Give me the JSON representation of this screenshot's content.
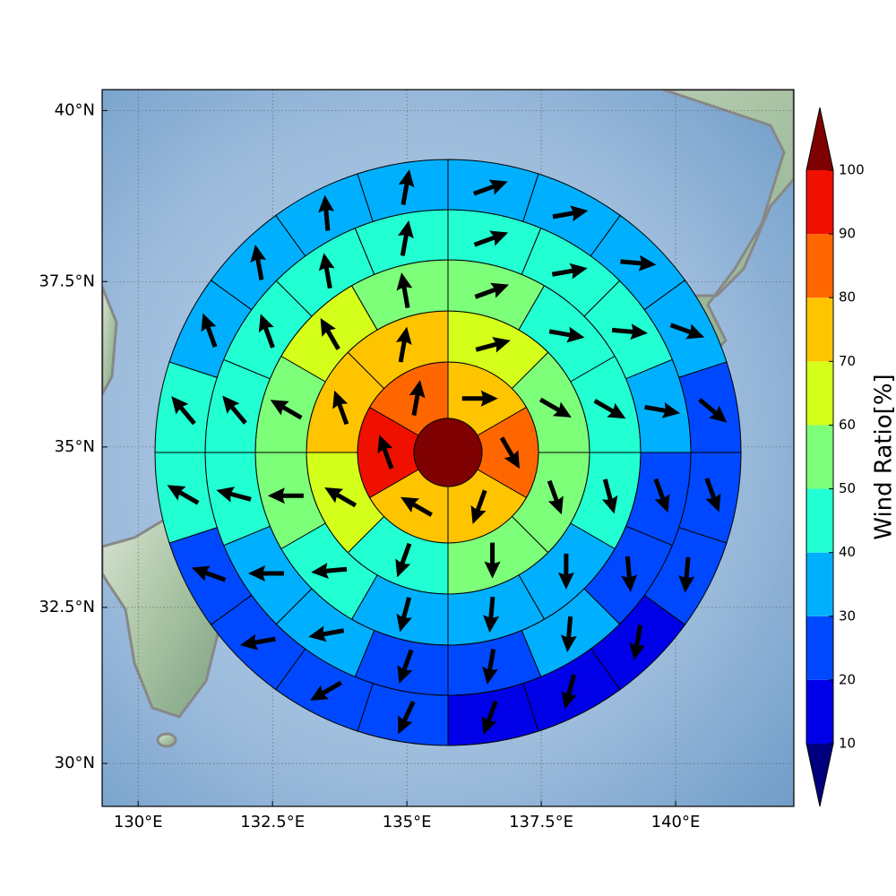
{
  "chart_data": {
    "type": "polar_wind",
    "xlim": [
      129.33,
      142.2
    ],
    "ylim": [
      29.3,
      40.3
    ],
    "yscale": "mercator",
    "grid": true,
    "xticks": [
      {
        "value": 130,
        "label": "130°E"
      },
      {
        "value": 132.5,
        "label": "132.5°E"
      },
      {
        "value": 135,
        "label": "135°E"
      },
      {
        "value": 137.5,
        "label": "137.5°E"
      },
      {
        "value": 140,
        "label": "140°E"
      }
    ],
    "yticks": [
      {
        "value": 30,
        "label": "30°N"
      },
      {
        "value": 32.5,
        "label": "32.5°N"
      },
      {
        "value": 35,
        "label": "35°N"
      },
      {
        "value": 37.5,
        "label": "37.5°N"
      },
      {
        "value": 40,
        "label": "40°N"
      }
    ],
    "center_value": 105,
    "rings": [
      {
        "values": [
          75,
          85,
          75,
          75,
          95,
          85
        ],
        "directions": [
          90,
          150,
          200,
          300,
          340,
          10
        ]
      },
      {
        "values": [
          65,
          55,
          55,
          55,
          45,
          65,
          75,
          75
        ],
        "directions": [
          75,
          120,
          160,
          180,
          200,
          300,
          340,
          10
        ]
      },
      {
        "values": [
          55,
          45,
          45,
          45,
          35,
          35,
          35,
          45,
          55,
          55,
          65,
          55
        ],
        "directions": [
          70,
          100,
          120,
          165,
          180,
          185,
          195,
          265,
          270,
          300,
          330,
          350
        ]
      },
      {
        "values": [
          45,
          45,
          45,
          35,
          25,
          25,
          35,
          25,
          25,
          35,
          35,
          45,
          45,
          45,
          45,
          45
        ],
        "directions": [
          70,
          80,
          95,
          100,
          160,
          175,
          185,
          190,
          200,
          260,
          270,
          285,
          320,
          340,
          350,
          10
        ]
      },
      {
        "values": [
          35,
          35,
          35,
          35,
          25,
          25,
          25,
          15,
          15,
          15,
          25,
          25,
          25,
          25,
          45,
          45,
          35,
          35,
          35,
          35
        ],
        "directions": [
          70,
          80,
          95,
          110,
          130,
          160,
          185,
          190,
          195,
          200,
          205,
          240,
          260,
          290,
          300,
          320,
          340,
          350,
          355,
          10
        ]
      }
    ],
    "colorbar": {
      "label": "Wind Ratio[%]",
      "levels": [
        10,
        20,
        30,
        40,
        50,
        60,
        70,
        80,
        90,
        100
      ],
      "colors": [
        "#0000e8",
        "#0048ff",
        "#00b0ff",
        "#22ffd2",
        "#7dff7a",
        "#d4ff1a",
        "#ffc400",
        "#ff6600",
        "#f01000"
      ],
      "under_color": "#00007f",
      "over_color": "#7f0000"
    }
  }
}
